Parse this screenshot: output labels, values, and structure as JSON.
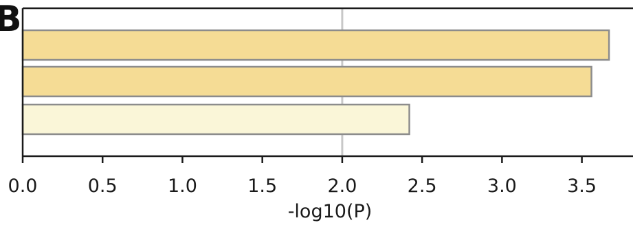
{
  "panel_label": "B",
  "chart_data": {
    "type": "bar",
    "orientation": "horizontal",
    "title": "",
    "xlabel": "-log10(P)",
    "ylabel": "",
    "categories": [
      "",
      "",
      ""
    ],
    "values": [
      3.67,
      3.56,
      2.42
    ],
    "xlim": [
      0,
      3.82
    ],
    "xticks": [
      "0.0",
      "0.5",
      "1.0",
      "1.5",
      "2.0",
      "2.5",
      "3.0",
      "3.5"
    ],
    "reference_line": 2.0,
    "grid": false,
    "legend": "none",
    "colors": {
      "bars": [
        "#f5dc95",
        "#f5dc95",
        "#faf6d8"
      ],
      "bar_edge": "#8c8c8c",
      "reference_line": "#c8c8c8",
      "axes": "#1a1a1a"
    }
  }
}
